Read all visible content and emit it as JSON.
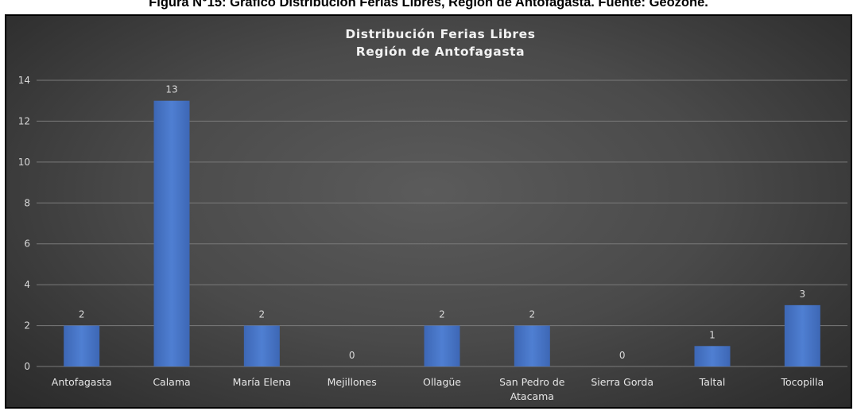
{
  "caption": "Figura N°15: Gráfico Distribución Ferias Libres, Región de Antofagasta. Fuente: Geozone.",
  "chart_data": {
    "type": "bar",
    "title": [
      "Distribución Ferias Libres",
      "Región de Antofagasta"
    ],
    "categories": [
      [
        "Antofagasta"
      ],
      [
        "Calama"
      ],
      [
        "María Elena"
      ],
      [
        "Mejillones"
      ],
      [
        "Ollagüe"
      ],
      [
        "San Pedro de",
        "Atacama"
      ],
      [
        "Sierra Gorda"
      ],
      [
        "Taltal"
      ],
      [
        "Tocopilla"
      ]
    ],
    "values": [
      2,
      13,
      2,
      0,
      2,
      2,
      0,
      1,
      3
    ],
    "ylim": [
      0,
      14
    ],
    "yticks": [
      0,
      2,
      4,
      6,
      8,
      10,
      12,
      14
    ],
    "grid": true,
    "legend": "none",
    "bar_color": "#4472c4",
    "bar_highlight": "#5a8ad8",
    "grid_color": "#7a7a7a"
  }
}
